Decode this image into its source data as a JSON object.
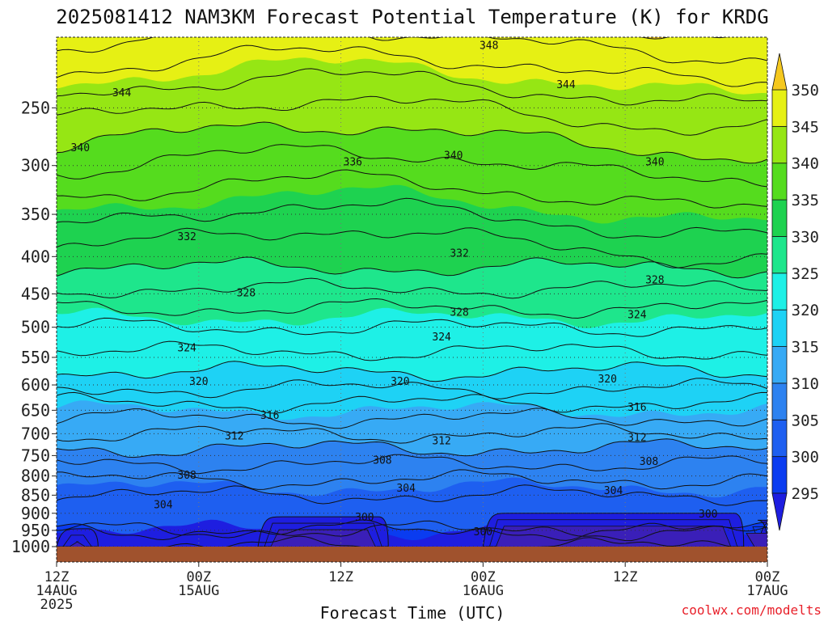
{
  "chart_data": {
    "type": "heatmap",
    "title": "2025081412 NAM3KM Forecast Potential Temperature (K) for KRDG",
    "xlabel": "Forecast Time (UTC)",
    "ylabel": "",
    "credit": "coolwx.com/modelts",
    "x_ticks": [
      {
        "hour": 0,
        "line1": "12Z",
        "line2": "14AUG",
        "line3": "2025"
      },
      {
        "hour": 12,
        "line1": "00Z",
        "line2": "15AUG",
        "line3": ""
      },
      {
        "hour": 24,
        "line1": "12Z",
        "line2": "",
        "line3": ""
      },
      {
        "hour": 36,
        "line1": "00Z",
        "line2": "16AUG",
        "line3": ""
      },
      {
        "hour": 48,
        "line1": "12Z",
        "line2": "",
        "line3": ""
      },
      {
        "hour": 60,
        "line1": "00Z",
        "line2": "17AUG",
        "line3": ""
      }
    ],
    "xlim": [
      0,
      60
    ],
    "y_ticks": [
      250,
      300,
      350,
      400,
      450,
      500,
      550,
      600,
      650,
      700,
      750,
      800,
      850,
      900,
      950,
      1000
    ],
    "ylim": [
      200,
      1020
    ],
    "y_scale": "log-pressure (inverted)",
    "colorbar": {
      "levels": [
        295,
        300,
        305,
        310,
        315,
        320,
        325,
        330,
        335,
        340,
        345,
        350
      ],
      "labels": [
        "295",
        "300",
        "305",
        "310",
        "315",
        "320",
        "325",
        "330",
        "335",
        "340",
        "345",
        "350"
      ],
      "colors": [
        "#1e1ee0",
        "#0a3cf0",
        "#1e5ff0",
        "#2d82f0",
        "#37aaf5",
        "#1ed2f5",
        "#1ef0e6",
        "#1ee68c",
        "#1ed250",
        "#55dc1e",
        "#96e614",
        "#e6f014",
        "#ffff00"
      ],
      "below_color": "#1e1ee0",
      "above_color": "#f5c81e"
    },
    "surface_color": "#a0522d",
    "surface_pressure": 1000,
    "contour_labels": [
      {
        "value": 348,
        "hour": 36.5,
        "p": 205
      },
      {
        "value": 344,
        "hour": 5.5,
        "p": 238
      },
      {
        "value": 344,
        "hour": 43,
        "p": 232
      },
      {
        "value": 340,
        "hour": 2,
        "p": 283
      },
      {
        "value": 340,
        "hour": 33.5,
        "p": 290
      },
      {
        "value": 340,
        "hour": 50.5,
        "p": 296
      },
      {
        "value": 336,
        "hour": 25,
        "p": 296
      },
      {
        "value": 332,
        "hour": 11,
        "p": 375
      },
      {
        "value": 332,
        "hour": 34,
        "p": 395
      },
      {
        "value": 328,
        "hour": 16,
        "p": 448
      },
      {
        "value": 328,
        "hour": 34,
        "p": 476
      },
      {
        "value": 328,
        "hour": 50.5,
        "p": 430
      },
      {
        "value": 324,
        "hour": 11,
        "p": 533
      },
      {
        "value": 324,
        "hour": 32.5,
        "p": 515
      },
      {
        "value": 324,
        "hour": 49,
        "p": 480
      },
      {
        "value": 320,
        "hour": 12,
        "p": 592
      },
      {
        "value": 320,
        "hour": 29,
        "p": 592
      },
      {
        "value": 320,
        "hour": 46.5,
        "p": 588
      },
      {
        "value": 316,
        "hour": 18,
        "p": 659
      },
      {
        "value": 316,
        "hour": 49,
        "p": 643
      },
      {
        "value": 312,
        "hour": 15,
        "p": 704
      },
      {
        "value": 312,
        "hour": 32.5,
        "p": 715
      },
      {
        "value": 312,
        "hour": 49,
        "p": 707
      },
      {
        "value": 308,
        "hour": 11,
        "p": 797
      },
      {
        "value": 308,
        "hour": 27.5,
        "p": 760
      },
      {
        "value": 308,
        "hour": 50,
        "p": 763
      },
      {
        "value": 304,
        "hour": 9,
        "p": 875
      },
      {
        "value": 304,
        "hour": 29.5,
        "p": 830
      },
      {
        "value": 304,
        "hour": 47,
        "p": 836
      },
      {
        "value": 300,
        "hour": 26,
        "p": 910
      },
      {
        "value": 300,
        "hour": 55,
        "p": 900
      },
      {
        "value": 300,
        "hour": 36,
        "p": 953
      }
    ],
    "cold_pools": [
      {
        "hour_start": 0,
        "hour_end": 3.5,
        "p_top": 945,
        "value": 298
      },
      {
        "hour_start": 17,
        "hour_end": 28,
        "p_top": 910,
        "value": 298
      },
      {
        "hour_start": 36,
        "hour_end": 58,
        "p_top": 900,
        "value": 298
      },
      {
        "hour_start": 59.2,
        "hour_end": 60,
        "p_top": 920,
        "value": 298
      }
    ],
    "theta_profile": [
      {
        "p": 1000,
        "theta": 302
      },
      {
        "p": 950,
        "theta": 301.5
      },
      {
        "p": 900,
        "theta": 302.5
      },
      {
        "p": 850,
        "theta": 304
      },
      {
        "p": 800,
        "theta": 306.5
      },
      {
        "p": 750,
        "theta": 309
      },
      {
        "p": 700,
        "theta": 312
      },
      {
        "p": 650,
        "theta": 315
      },
      {
        "p": 600,
        "theta": 318.5
      },
      {
        "p": 550,
        "theta": 321.5
      },
      {
        "p": 500,
        "theta": 324
      },
      {
        "p": 450,
        "theta": 327.5
      },
      {
        "p": 400,
        "theta": 331
      },
      {
        "p": 350,
        "theta": 334.5
      },
      {
        "p": 300,
        "theta": 338
      },
      {
        "p": 250,
        "theta": 342.5
      },
      {
        "p": 200,
        "theta": 348.5
      }
    ]
  }
}
